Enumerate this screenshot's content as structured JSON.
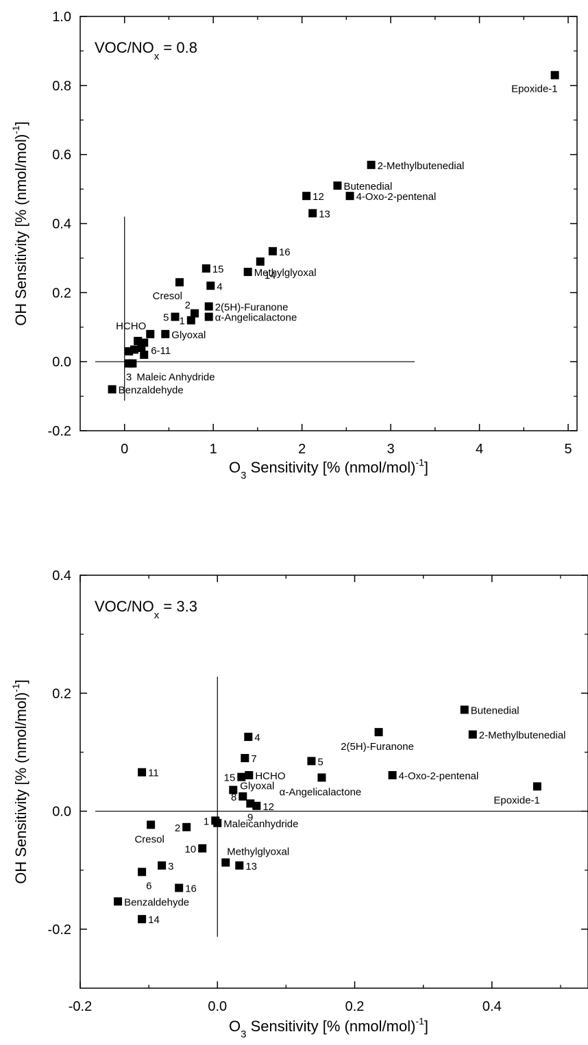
{
  "chart_data": [
    {
      "type": "scatter",
      "annotation": {
        "main": "VOC/NO",
        "sub": "x",
        "tail": " = 0.8"
      },
      "xlabel": {
        "main": "O",
        "sub": "3",
        "mid": " Sensitivity [% (nmol/mol)",
        "sup": "-1",
        "tail": "]"
      },
      "ylabel": {
        "main": "OH Sensitivity [% (nmol/mol)",
        "sup": "-1",
        "tail": "]"
      },
      "xlim": [
        -0.5,
        5.1
      ],
      "ylim": [
        -0.2,
        1.0
      ],
      "xticks": [
        {
          "v": 0,
          "t": "0"
        },
        {
          "v": 1,
          "t": "1"
        },
        {
          "v": 2,
          "t": "2"
        },
        {
          "v": 3,
          "t": "3"
        },
        {
          "v": 4,
          "t": "4"
        },
        {
          "v": 5,
          "t": "5"
        }
      ],
      "yticks": [
        {
          "v": -0.2,
          "t": "-0.2"
        },
        {
          "v": 0.0,
          "t": "0.0"
        },
        {
          "v": 0.2,
          "t": "0.2"
        },
        {
          "v": 0.4,
          "t": "0.4"
        },
        {
          "v": 0.6,
          "t": "0.6"
        },
        {
          "v": 0.8,
          "t": "0.8"
        },
        {
          "v": 1.0,
          "t": "1.0"
        }
      ],
      "hline": {
        "y": 0.0,
        "x": [
          -0.33,
          3.27
        ]
      },
      "vline": {
        "x": 0.0,
        "y": [
          -0.113,
          0.42
        ]
      },
      "points": [
        {
          "x": 4.85,
          "y": 0.83,
          "label": "Epoxide-1",
          "pos": "below-left"
        },
        {
          "x": 2.78,
          "y": 0.57,
          "label": "2-Methylbutenedial",
          "pos": "right"
        },
        {
          "x": 2.4,
          "y": 0.51,
          "label": "Butenedial",
          "pos": "right"
        },
        {
          "x": 2.54,
          "y": 0.48,
          "label": "4-Oxo-2-pentenal",
          "pos": "right"
        },
        {
          "x": 2.05,
          "y": 0.48,
          "label": "12",
          "pos": "right"
        },
        {
          "x": 2.12,
          "y": 0.43,
          "label": "13",
          "pos": "right"
        },
        {
          "x": 1.67,
          "y": 0.32,
          "label": "16",
          "pos": "right"
        },
        {
          "x": 1.53,
          "y": 0.29,
          "label": "14",
          "pos": "below-right"
        },
        {
          "x": 0.92,
          "y": 0.27,
          "label": "15",
          "pos": "right"
        },
        {
          "x": 1.39,
          "y": 0.26,
          "label": "Methylglyoxal",
          "pos": "right"
        },
        {
          "x": 0.62,
          "y": 0.23,
          "label": "Cresol",
          "pos": "below-left"
        },
        {
          "x": 0.97,
          "y": 0.22,
          "label": "4",
          "pos": "right"
        },
        {
          "x": 0.95,
          "y": 0.16,
          "label": "2(5H)-Furanone",
          "pos": "right"
        },
        {
          "x": 0.79,
          "y": 0.14,
          "label": "2",
          "pos": "above-left"
        },
        {
          "x": 0.95,
          "y": 0.13,
          "label": "α-Angelicalactone",
          "pos": "right"
        },
        {
          "x": 0.57,
          "y": 0.13,
          "label": "5",
          "pos": "left"
        },
        {
          "x": 0.75,
          "y": 0.12,
          "label": "1",
          "pos": "left"
        },
        {
          "x": 0.29,
          "y": 0.08,
          "label": "HCHO",
          "pos": "above-left"
        },
        {
          "x": 0.46,
          "y": 0.08,
          "label": "Glyoxal",
          "pos": "right"
        },
        {
          "x": 0.15,
          "y": 0.06,
          "label": "",
          "pos": "none"
        },
        {
          "x": 0.22,
          "y": 0.055,
          "label": "",
          "pos": "none"
        },
        {
          "x": 0.19,
          "y": 0.04,
          "label": "",
          "pos": "none"
        },
        {
          "x": 0.05,
          "y": 0.03,
          "label": "",
          "pos": "none"
        },
        {
          "x": 0.11,
          "y": 0.035,
          "label": "",
          "pos": "none"
        },
        {
          "x": 0.22,
          "y": 0.02,
          "label": "6-11",
          "pos": "right-up"
        },
        {
          "x": 0.05,
          "y": -0.005,
          "label": "3",
          "pos": "below-left"
        },
        {
          "x": 0.09,
          "y": -0.005,
          "label": "Maleic Anhydride",
          "pos": "below-right"
        },
        {
          "x": -0.14,
          "y": -0.08,
          "label": "Benzaldehyde",
          "pos": "right"
        }
      ]
    },
    {
      "type": "scatter",
      "annotation": {
        "main": "VOC/NO",
        "sub": "x",
        "tail": " = 3.3"
      },
      "xlabel": {
        "main": "O",
        "sub": "3",
        "mid": " Sensitivity [% (nmol/mol)",
        "sup": "-1",
        "tail": "]"
      },
      "ylabel": {
        "main": "OH Sensitivity [% (nmol/mol)",
        "sup": "-1",
        "tail": "]"
      },
      "xlim": [
        -0.2,
        0.54
      ],
      "ylim": [
        -0.3,
        0.4
      ],
      "xticks": [
        {
          "v": -0.2,
          "t": "-0.2"
        },
        {
          "v": 0.0,
          "t": "0.0"
        },
        {
          "v": 0.2,
          "t": "0.2"
        },
        {
          "v": 0.4,
          "t": "0.4"
        }
      ],
      "yticks": [
        {
          "v": -0.2,
          "t": "-0.2"
        },
        {
          "v": 0.0,
          "t": "0.0"
        },
        {
          "v": 0.2,
          "t": "0.2"
        },
        {
          "v": 0.4,
          "t": "0.4"
        }
      ],
      "hline": {
        "y": 0.0,
        "x": [
          -0.178,
          0.54
        ]
      },
      "vline": {
        "x": 0.0,
        "y": [
          -0.213,
          0.228
        ]
      },
      "points": [
        {
          "x": 0.36,
          "y": 0.172,
          "label": "Butenedial",
          "pos": "right"
        },
        {
          "x": 0.235,
          "y": 0.134,
          "label": "2(5H)-Furanone",
          "pos": "below"
        },
        {
          "x": 0.372,
          "y": 0.13,
          "label": "2-Methylbutenedial",
          "pos": "right"
        },
        {
          "x": 0.045,
          "y": 0.126,
          "label": "4",
          "pos": "right"
        },
        {
          "x": 0.04,
          "y": 0.09,
          "label": "7",
          "pos": "right"
        },
        {
          "x": 0.137,
          "y": 0.085,
          "label": "5",
          "pos": "right"
        },
        {
          "x": -0.11,
          "y": 0.066,
          "label": "11",
          "pos": "right"
        },
        {
          "x": 0.046,
          "y": 0.061,
          "label": "HCHO",
          "pos": "right"
        },
        {
          "x": 0.255,
          "y": 0.061,
          "label": "4-Oxo-2-pentenal",
          "pos": "right"
        },
        {
          "x": 0.035,
          "y": 0.058,
          "label": "15",
          "pos": "left"
        },
        {
          "x": 0.152,
          "y": 0.057,
          "label": "α-Angelicalactone",
          "pos": "below"
        },
        {
          "x": 0.466,
          "y": 0.042,
          "label": "Epoxide-1",
          "pos": "below-left"
        },
        {
          "x": 0.023,
          "y": 0.036,
          "label": "Glyoxal",
          "pos": "right-up"
        },
        {
          "x": 0.037,
          "y": 0.025,
          "label": "8",
          "pos": "left"
        },
        {
          "x": 0.048,
          "y": 0.013,
          "label": "9",
          "pos": "below-left"
        },
        {
          "x": 0.057,
          "y": 0.009,
          "label": "12",
          "pos": "right"
        },
        {
          "x": -0.003,
          "y": -0.016,
          "label": "1",
          "pos": "left"
        },
        {
          "x": 0.0,
          "y": -0.02,
          "label": "Maleicanhydride",
          "pos": "right"
        },
        {
          "x": -0.097,
          "y": -0.023,
          "label": "Cresol",
          "pos": "below"
        },
        {
          "x": -0.045,
          "y": -0.027,
          "label": "2",
          "pos": "left"
        },
        {
          "x": -0.022,
          "y": -0.063,
          "label": "10",
          "pos": "left"
        },
        {
          "x": 0.012,
          "y": -0.087,
          "label": "Methylglyoxal",
          "pos": "above-right"
        },
        {
          "x": -0.081,
          "y": -0.092,
          "label": "3",
          "pos": "right"
        },
        {
          "x": 0.032,
          "y": -0.092,
          "label": "13",
          "pos": "right"
        },
        {
          "x": -0.11,
          "y": -0.103,
          "label": "6",
          "pos": "below-right"
        },
        {
          "x": -0.056,
          "y": -0.13,
          "label": "16",
          "pos": "right"
        },
        {
          "x": -0.145,
          "y": -0.153,
          "label": "Benzaldehyde",
          "pos": "right"
        },
        {
          "x": -0.11,
          "y": -0.183,
          "label": "14",
          "pos": "right"
        }
      ]
    }
  ]
}
